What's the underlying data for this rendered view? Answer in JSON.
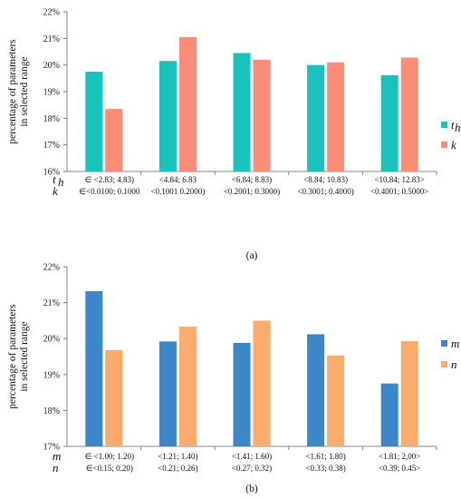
{
  "chart_data": [
    {
      "type": "bar",
      "panel_label": "(a)",
      "ylabel": [
        "percentage of parameters",
        "in selected range"
      ],
      "ylim": [
        16,
        22
      ],
      "yticks": [
        "16%",
        "17%",
        "18%",
        "19%",
        "20%",
        "21%",
        "22%"
      ],
      "categories": [
        [
          "∈ <2.83; 4.83)",
          "∈<0.0100; 0.1000"
        ],
        [
          "<4.84; 6.83",
          "<0.1001 0.2000)"
        ],
        [
          "<6.84; 8.83)",
          "<0.2001; 0.3000)"
        ],
        [
          "<8.84; 10.83)",
          "<0.3001; 0.4000)"
        ],
        [
          "<10.84; 12.83>",
          "<0.4001; 0.5000>"
        ]
      ],
      "category_prefix": [
        "t",
        "h",
        "k"
      ],
      "series": [
        {
          "name": "t",
          "subscript": "h",
          "color": "#19c3bb",
          "values": [
            19.75,
            20.15,
            20.45,
            20.0,
            19.62
          ]
        },
        {
          "name": "k",
          "color": "#f98d78",
          "values": [
            18.35,
            21.05,
            20.2,
            20.1,
            20.28
          ]
        }
      ],
      "grid": false,
      "legend": "right"
    },
    {
      "type": "bar",
      "panel_label": "(b)",
      "ylabel": [
        "percentage of parameters",
        "in selected range"
      ],
      "ylim": [
        17,
        22
      ],
      "yticks": [
        "17%",
        "18%",
        "19%",
        "20%",
        "21%",
        "22%"
      ],
      "categories": [
        [
          "∈ <1.00; 1.20)",
          "∈<0.15; 0.20)"
        ],
        [
          "<1.21; 1.40)",
          "<0.21; 0.26)"
        ],
        [
          "<1.41; 1.60)",
          "<0.27; 0.32)"
        ],
        [
          "<1.61; 1.80)",
          "<0.33; 0.38)"
        ],
        [
          "<1.81; 2,00>",
          "<0.39; 0.45>"
        ]
      ],
      "category_prefix": [
        "m",
        "",
        "n"
      ],
      "series": [
        {
          "name": "m",
          "color": "#3b87c8",
          "values": [
            21.32,
            19.92,
            19.88,
            20.12,
            18.75
          ]
        },
        {
          "name": "n",
          "color": "#fbab6b",
          "values": [
            19.68,
            20.33,
            20.5,
            19.53,
            19.93
          ]
        }
      ],
      "grid": false,
      "legend": "right"
    }
  ]
}
